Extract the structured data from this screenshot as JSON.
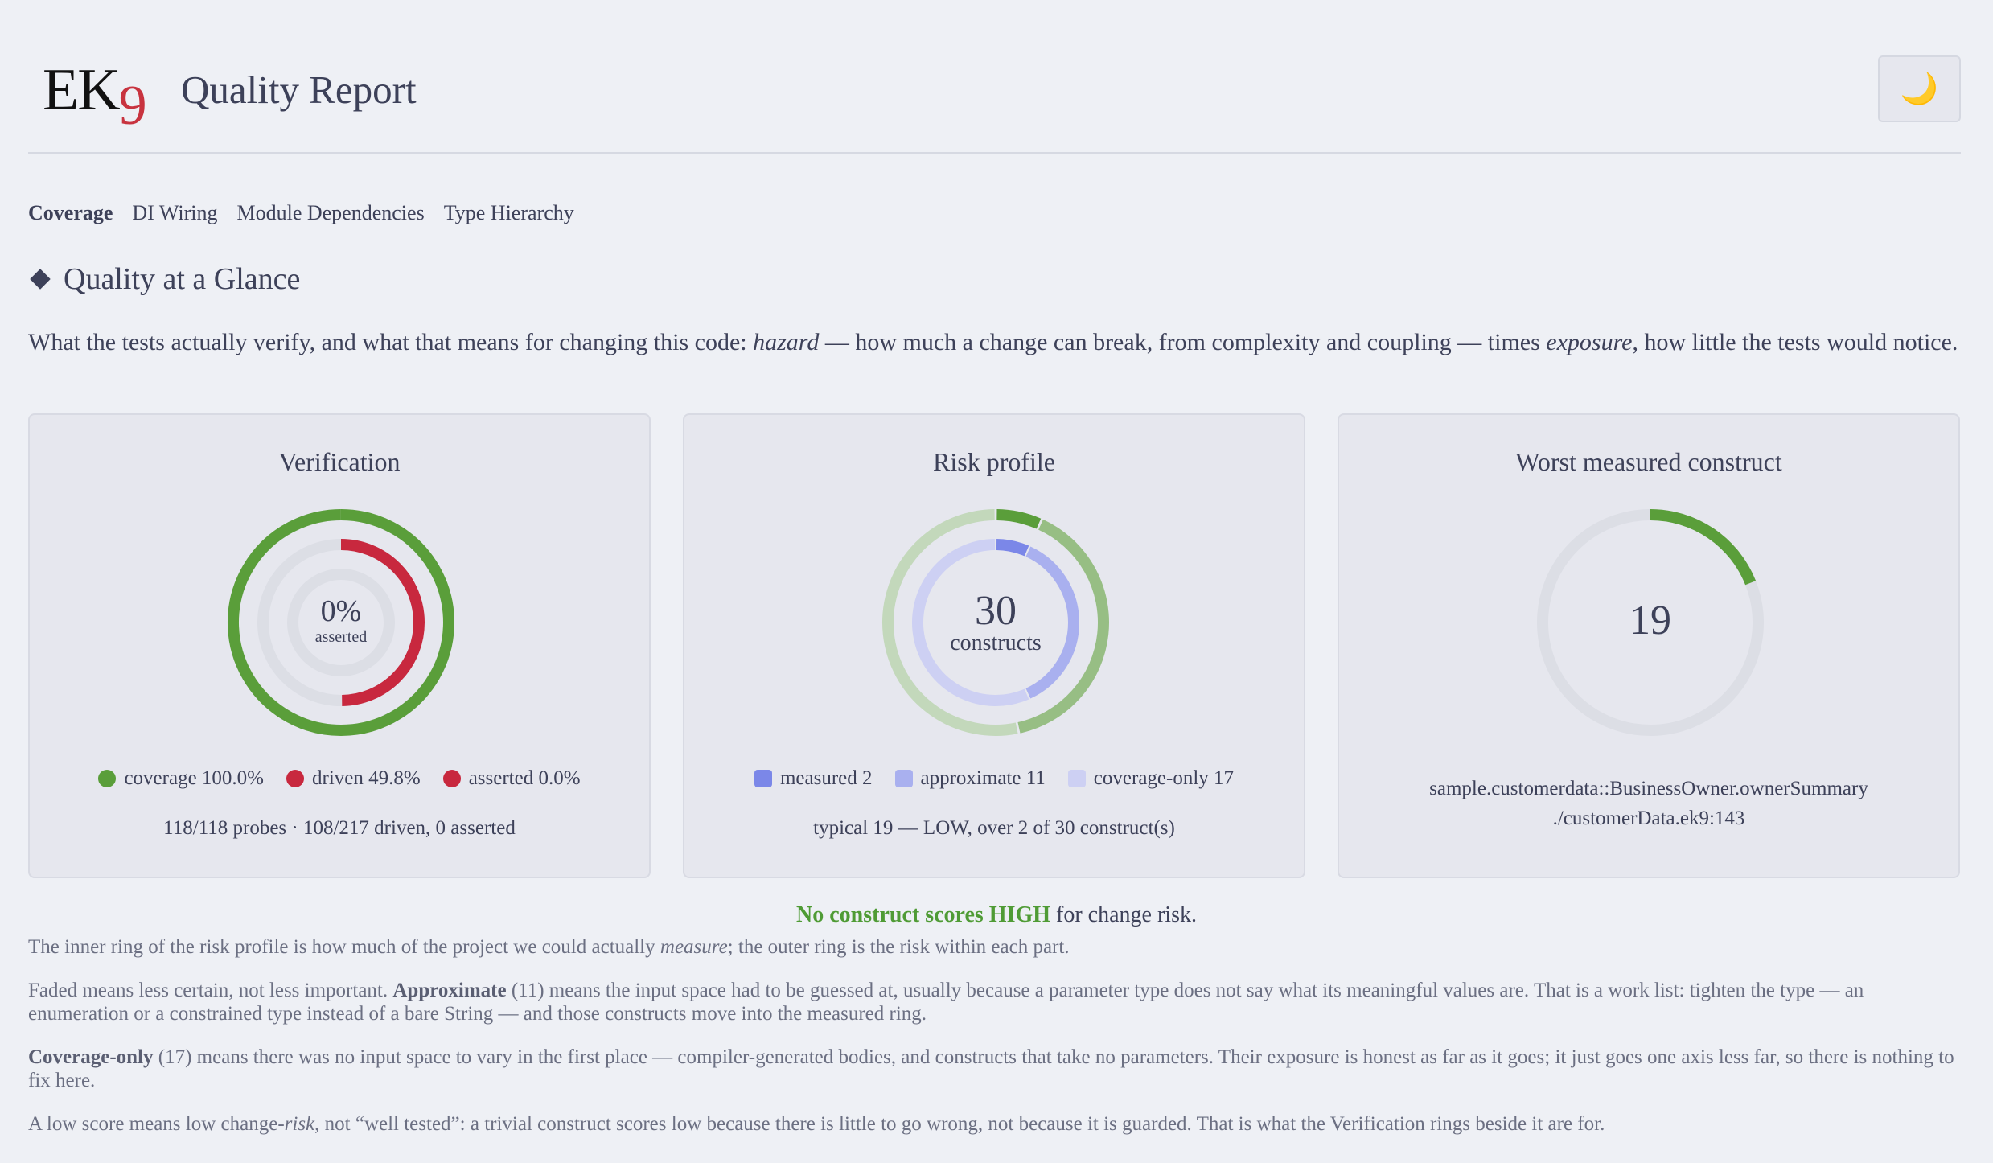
{
  "app": {
    "logo_text": "EK",
    "logo_digit": "9",
    "title": "Quality Report",
    "theme_icon": "moon-icon",
    "theme_glyph": "🌙"
  },
  "tabs": [
    {
      "label": "Coverage",
      "active": true
    },
    {
      "label": "DI Wiring",
      "active": false
    },
    {
      "label": "Module Dependencies",
      "active": false
    },
    {
      "label": "Type Hierarchy",
      "active": false
    }
  ],
  "section": {
    "title": "Quality at a Glance",
    "intro_a": "What the tests actually verify, and what that means for changing this code: ",
    "intro_hazard": "hazard",
    "intro_b": " — how much a change can break, from complexity and coupling — times ",
    "intro_exposure": "exposure",
    "intro_c": ", how little the tests would notice."
  },
  "cards": {
    "verification": {
      "title": "Verification",
      "center_value": "0%",
      "center_label": "asserted",
      "legend": [
        {
          "label": "coverage 100.0%",
          "color": "#5a9e3a"
        },
        {
          "label": "driven 49.8%",
          "color": "#c8283e"
        },
        {
          "label": "asserted 0.0%",
          "color": "#c8283e"
        }
      ],
      "caption": "118/118 probes · 108/217 driven, 0 asserted"
    },
    "risk": {
      "title": "Risk profile",
      "center_value": "30",
      "center_label": "constructs",
      "legend": [
        {
          "label": "measured 2",
          "color": "#7b87e8"
        },
        {
          "label": "approximate 11",
          "color": "#a9b0ef"
        },
        {
          "label": "coverage-only 17",
          "color": "#cdd0f3"
        }
      ],
      "caption": "typical 19 — LOW, over 2 of 30 construct(s)"
    },
    "worst": {
      "title": "Worst measured construct",
      "center_value": "19",
      "path_line1": "sample.customerdata::BusinessOwner.ownerSummary",
      "path_line2": "./customerData.ek9:143"
    }
  },
  "gauges": {
    "verification": {
      "coverage": 1.0,
      "driven": 0.498,
      "asserted": 0.0
    },
    "risk": {
      "measured": 2,
      "approximate": 11,
      "coverage_only": 17,
      "outer_strong_fraction": 0.067,
      "outer_mid_fraction": 0.4
    },
    "worst": {
      "score": 19,
      "fraction": 0.19
    }
  },
  "headline": {
    "highlight": "No construct scores HIGH",
    "rest": " for change risk."
  },
  "notes": {
    "p1_a": "The inner ring of the risk profile is how much of the project we could actually ",
    "p1_em": "measure",
    "p1_b": "; the outer ring is the risk within each part.",
    "p2_a": "Faded means less certain, not less important. ",
    "p2_b": "Approximate",
    "p2_c": " (11) means the input space had to be guessed at, usually because a parameter type does not say what its meaningful values are. That is a work list: tighten the type — an enumeration or a constrained type instead of a bare String — and those constructs move into the measured ring.",
    "p3_b": "Coverage-only",
    "p3_c": " (17) means there was no input space to vary in the first place — compiler-generated bodies, and constructs that take no parameters. Their exposure is honest as far as it goes; it just goes one axis less far, so there is nothing to fix here.",
    "p4_a": "A low score means low change-",
    "p4_em": "risk",
    "p4_b": ", not “well tested”: a trivial construct scores low because there is little to go wrong, not because it is guarded. That is what the Verification rings beside it are for."
  }
}
